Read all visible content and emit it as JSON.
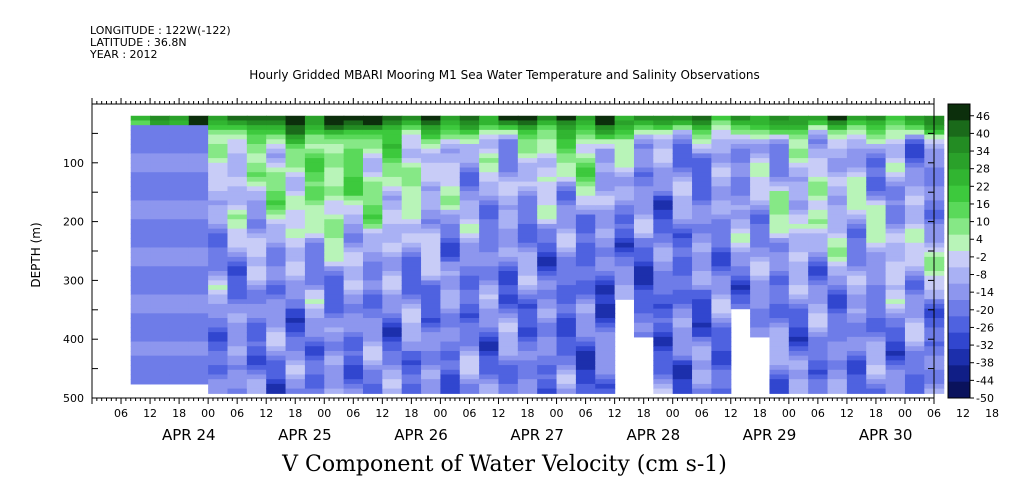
{
  "header": {
    "longitude": "LONGITUDE : 122W(-122)",
    "latitude": "LATITUDE : 36.8N",
    "year": "YEAR : 2012"
  },
  "chart_data": {
    "type": "heatmap",
    "title": "Hourly Gridded MBARI Mooring M1 Sea Water Temperature and Salinity Observations",
    "xlabel": "V Component of Water Velocity (cm s-1)",
    "ylabel": "DEPTH (m)",
    "x_range_hours": [
      "2012-04-23 18:00",
      "2012-05-01 00:00"
    ],
    "ylim": [
      500,
      0
    ],
    "y_ticks": [
      100,
      200,
      300,
      400,
      500
    ],
    "hour_tick_labels": [
      "06",
      "12",
      "18",
      "00",
      "06",
      "12",
      "18",
      "00",
      "06",
      "12",
      "18",
      "00",
      "06",
      "12",
      "18",
      "00",
      "06",
      "12",
      "18",
      "00",
      "06",
      "12",
      "18",
      "00",
      "06",
      "12",
      "18",
      "00",
      "06",
      "12",
      "18",
      "00"
    ],
    "day_labels": [
      "APR 24",
      "APR 25",
      "APR 26",
      "APR 27",
      "APR 28",
      "APR 29",
      "APR 30"
    ],
    "colorbar": {
      "labels": [
        "46",
        "40",
        "34",
        "28",
        "22",
        "16",
        "10",
        "4",
        "-2",
        "-8",
        "-14",
        "-20",
        "-26",
        "-32",
        "-38",
        "-44",
        "-50"
      ],
      "range": [
        -50,
        50
      ],
      "step": 3,
      "colors": [
        "#0c2f0c",
        "#1a6a1a",
        "#238c23",
        "#2aa12a",
        "#31b531",
        "#3dc93d",
        "#5ad95a",
        "#86e886",
        "#b8f4b8",
        "#c8ccf7",
        "#a9b1f4",
        "#8d96ee",
        "#6e7ce8",
        "#4f62e0",
        "#3146cf",
        "#1c2fac",
        "#101e86",
        "#0a125c"
      ]
    },
    "value_pattern": {
      "description": "Velocity field: positive (green) near surface, negative (blue) at depth; data gaps (white) near bottom",
      "near_surface_0_30m": 35,
      "apr25_26_upper_200m": 15,
      "lower_column_300_480m": -18,
      "apr28_deep": -25,
      "first_day_filled": -18
    }
  }
}
